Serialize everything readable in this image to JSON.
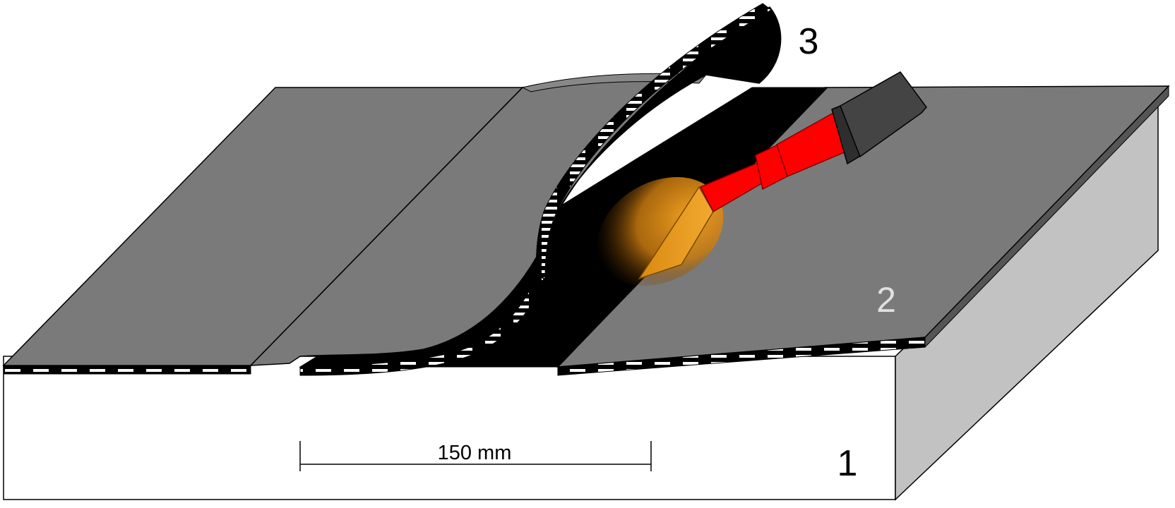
{
  "labels": {
    "base": "1",
    "lower_sheet": "2",
    "upper_sheet": "3"
  },
  "dimension": {
    "text": "150 mm"
  },
  "colors": {
    "sheet_gray": "#7a7a7a",
    "bitumen_black": "#000000",
    "slab_side": "#c2c2c2",
    "slab_front": "#ffffff",
    "torch_red": "#ff0000",
    "torch_handle": "#444444",
    "flame_orange": "#e89a1e"
  }
}
